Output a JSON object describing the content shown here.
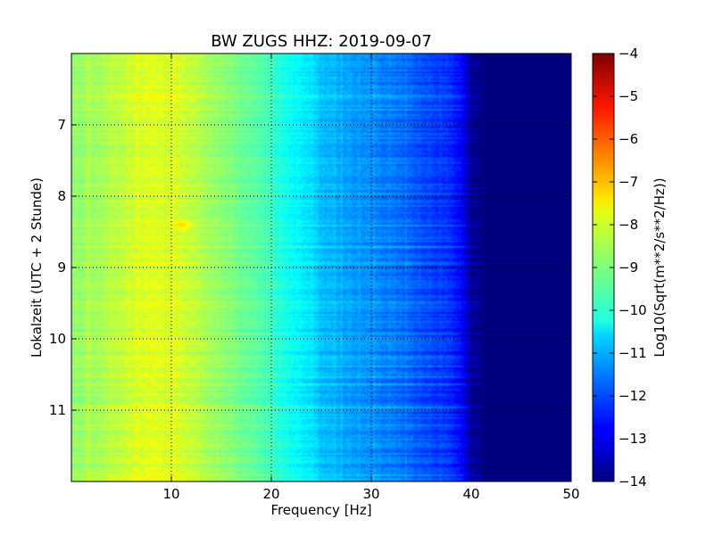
{
  "chart_data": {
    "type": "heatmap",
    "title": "BW ZUGS HHZ: 2019-09-07",
    "xlabel": "Frequency [Hz]",
    "ylabel": "Lokalzeit (UTC + 2 Stunde)",
    "colorbar_label": "Log10(Sqrt(m**2/s**2/Hz))",
    "colormap": "jet",
    "xlim": [
      0,
      50
    ],
    "ylim": [
      12,
      6
    ],
    "x_ticks": [
      "10",
      "20",
      "30",
      "40",
      "50"
    ],
    "y_ticks": [
      "7",
      "8",
      "9",
      "10",
      "11"
    ],
    "colorbar_range": [
      -14,
      -4
    ],
    "colorbar_ticks": [
      "−4",
      "−5",
      "−6",
      "−7",
      "−8",
      "−9",
      "−10",
      "−11",
      "−12",
      "−13",
      "−14"
    ],
    "grid": true,
    "frequency_profile": {
      "frequency_hz": [
        0,
        2,
        5,
        8,
        11,
        14,
        17,
        20,
        22,
        24,
        25,
        27,
        30,
        33,
        36,
        38,
        39,
        40,
        41,
        50
      ],
      "log10_amplitude": [
        -8.9,
        -8.7,
        -8.4,
        -8.1,
        -8.3,
        -8.7,
        -9.2,
        -9.7,
        -10.2,
        -10.5,
        -10.9,
        -11.1,
        -11.4,
        -11.7,
        -12.1,
        -12.4,
        -12.8,
        -13.7,
        -14,
        -14
      ]
    },
    "hotspot": {
      "frequency_hz": 11,
      "time": 8.4,
      "log10_amplitude": -7.6
    }
  }
}
